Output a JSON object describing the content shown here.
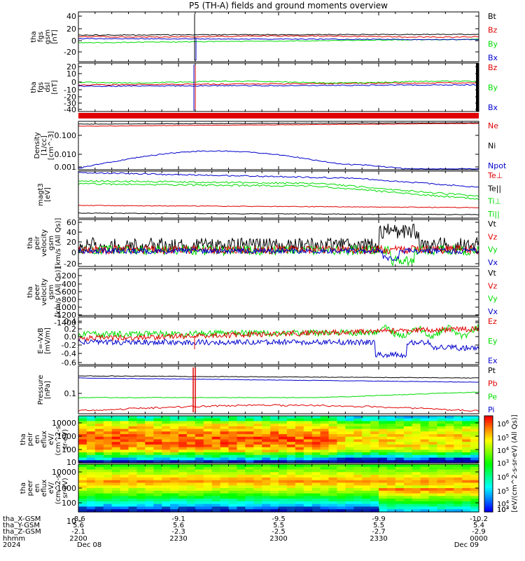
{
  "title": "P5 (TH-A) fields and ground moments overview",
  "colors": {
    "black": "#000000",
    "red": "#e00000",
    "green": "#00dd00",
    "blue": "#0000cc"
  },
  "panels": [
    {
      "id": "fgs-gsm",
      "ylabel": [
        "tha",
        "fgs",
        "gsm",
        "[nT]"
      ],
      "ticks": [
        "40",
        "20",
        "0",
        "-20"
      ],
      "legend": [
        {
          "text": "Bt",
          "color": "black"
        },
        {
          "text": "Bz",
          "color": "red"
        },
        {
          "text": "By",
          "color": "green"
        },
        {
          "text": "Bx",
          "color": "blue"
        }
      ]
    },
    {
      "id": "fgs-dsl",
      "ylabel": [
        "tha",
        "fgs",
        "dsl",
        "[nT]"
      ],
      "ticks": [
        "20",
        "10",
        "0",
        "-10",
        "-20",
        "-30",
        "-40"
      ],
      "legend": [
        {
          "text": "Bz",
          "color": "red"
        },
        {
          "text": "By",
          "color": "green"
        },
        {
          "text": "Bx",
          "color": "blue"
        }
      ]
    },
    {
      "id": "density",
      "ylabel": [
        "Density",
        "[1/cc]",
        "[cm^-3]"
      ],
      "ticks": [
        "0.100",
        "0.010",
        "0.001"
      ],
      "legend": [
        {
          "text": "Ne",
          "color": "red"
        },
        {
          "text": "Ni",
          "color": "black"
        },
        {
          "text": "Npot",
          "color": "blue"
        }
      ]
    },
    {
      "id": "temperature",
      "ylabel": [
        "magt3",
        "[eV]"
      ],
      "ticks": [],
      "legend": [
        {
          "text": "Te⊥",
          "color": "red"
        },
        {
          "text": "Te||",
          "color": "black"
        },
        {
          "text": "Ti⊥",
          "color": "green"
        },
        {
          "text": "Ti||",
          "color": "green"
        }
      ]
    },
    {
      "id": "peir-velocity",
      "ylabel": [
        "tha",
        "peir",
        "velocity",
        "gsm",
        "[km/s (All Qs)]"
      ],
      "ticks": [
        "60",
        "40",
        "20",
        "0",
        "-20"
      ],
      "legend": [
        {
          "text": "Vt",
          "color": "black"
        },
        {
          "text": "Vz",
          "color": "red"
        },
        {
          "text": "Vy",
          "color": "green"
        },
        {
          "text": "Vx",
          "color": "blue"
        }
      ]
    },
    {
      "id": "peer-velocity",
      "ylabel": [
        "tha",
        "peer",
        "velocity",
        "gsm",
        "[km/s (All Qs)]"
      ],
      "ticks": [
        "-200",
        "-400",
        "-600",
        "-800",
        "-1000",
        "-1200",
        "-1400"
      ],
      "legend": [
        {
          "text": "Vt",
          "color": "black"
        },
        {
          "text": "Vz",
          "color": "red"
        },
        {
          "text": "Vy",
          "color": "green"
        },
        {
          "text": "Vx",
          "color": "blue"
        }
      ]
    },
    {
      "id": "efield",
      "ylabel": [
        "E=-VxB",
        "[mV/m]"
      ],
      "ticks": [
        "0.4",
        "0.2",
        "0.0",
        "-0.2",
        "-0.4",
        "-0.6"
      ],
      "legend": [
        {
          "text": "Ez",
          "color": "red"
        },
        {
          "text": "Ey",
          "color": "green"
        },
        {
          "text": "Ex",
          "color": "blue"
        }
      ]
    },
    {
      "id": "pressure",
      "ylabel": [
        "Pressure",
        "[nPa]"
      ],
      "ticks": [
        "0.1"
      ],
      "legend": [
        {
          "text": "Pt",
          "color": "black"
        },
        {
          "text": "Pb",
          "color": "red"
        },
        {
          "text": "Pe",
          "color": "green"
        },
        {
          "text": "Pi",
          "color": "blue"
        }
      ]
    },
    {
      "id": "peir-spec",
      "ylabel": [
        "tha",
        "peir",
        "en",
        "eflux",
        "eV/",
        "(cm^2-s-",
        "sr-eV)"
      ],
      "ticks": [
        "10000",
        "1000",
        "100",
        "10"
      ],
      "legend": []
    },
    {
      "id": "peer-spec",
      "ylabel": [
        "tha",
        "peer",
        "en",
        "eflux",
        "eV/",
        "(cm^2-s-",
        "sr-eV)"
      ],
      "ticks": [
        "10000",
        "1000",
        "100",
        "10"
      ],
      "legend": []
    }
  ],
  "colorbar": {
    "ticks": [
      "10^6",
      "10^5",
      "10^4",
      "10^3",
      "10^6",
      "10^5",
      "10^4",
      "10^3",
      "10^2"
    ],
    "label": "[eV/(cm^2-s-sr-eV) (All Qs)]"
  },
  "xaxis": {
    "row_labels": [
      "tha_X-GSM",
      "tha_Y-GSM",
      "tha_Z-GSM",
      "hhmm",
      "2024"
    ],
    "columns": [
      [
        "-8.6",
        "5.6",
        "-2.1",
        "2200",
        "Dec 08"
      ],
      [
        "-9.1",
        "5.6",
        "-2.3",
        "2230",
        ""
      ],
      [
        "-9.5",
        "5.5",
        "-2.5",
        "2300",
        ""
      ],
      [
        "-9.9",
        "5.5",
        "-2.7",
        "2330",
        ""
      ],
      [
        "-10.2",
        "5.4",
        "-2.9",
        "0000",
        "Dec 09"
      ]
    ]
  },
  "chart_data": {
    "type": "line",
    "time_range": [
      "2024-12-08 22:00",
      "2024-12-09 00:00"
    ],
    "series": [
      {
        "panel": "fgs-gsm",
        "name": "Bt",
        "color": "black",
        "values": [
          8,
          8,
          8,
          7,
          7,
          7,
          7,
          6,
          6,
          7
        ]
      },
      {
        "panel": "fgs-gsm",
        "name": "Bz",
        "color": "red",
        "values": [
          6,
          6,
          6,
          5,
          5,
          5,
          6,
          5,
          7,
          5
        ]
      },
      {
        "panel": "fgs-gsm",
        "name": "By",
        "color": "green",
        "values": [
          -6,
          -5,
          -4,
          -3,
          -2,
          -1,
          0,
          1,
          -2,
          2
        ]
      },
      {
        "panel": "fgs-gsm",
        "name": "Bx",
        "color": "blue",
        "values": [
          2,
          2,
          2,
          2,
          1,
          1,
          1,
          0,
          1,
          0
        ]
      },
      {
        "panel": "density",
        "name": "Ne",
        "color": "red",
        "values": [
          0.28,
          0.27,
          0.26,
          0.26,
          0.27,
          0.27,
          0.28,
          0.3,
          0.32,
          0.33
        ]
      },
      {
        "panel": "density",
        "name": "Npot",
        "color": "blue",
        "values": [
          0.0011,
          0.003,
          0.005,
          0.007,
          0.0075,
          0.0065,
          0.004,
          0.002,
          0.001,
          null
        ]
      },
      {
        "panel": "peir-velocity",
        "name": "Vt",
        "color": "black",
        "values": [
          20,
          22,
          20,
          18,
          20,
          19,
          18,
          22,
          45,
          25
        ]
      },
      {
        "panel": "peir-velocity",
        "name": "Vx",
        "color": "blue",
        "values": [
          5,
          3,
          2,
          3,
          4,
          2,
          3,
          2,
          -5,
          5
        ]
      },
      {
        "panel": "efield",
        "name": "Ez",
        "color": "red",
        "values": [
          0.02,
          0.03,
          0.05,
          0.06,
          0.08,
          0.1,
          0.12,
          0.13,
          0.15,
          0.12
        ]
      },
      {
        "panel": "efield",
        "name": "Ex",
        "color": "blue",
        "values": [
          -0.08,
          -0.06,
          -0.05,
          -0.04,
          -0.03,
          -0.04,
          -0.02,
          -0.1,
          -0.35,
          -0.15
        ]
      },
      {
        "panel": "pressure",
        "name": "Pt",
        "color": "black",
        "values": [
          0.3,
          0.29,
          0.28,
          0.27,
          0.27,
          0.26,
          0.27,
          0.27,
          0.26,
          0.26
        ]
      },
      {
        "panel": "pressure",
        "name": "Pe",
        "color": "green",
        "values": [
          0.1,
          0.1,
          0.1,
          0.1,
          0.095,
          0.09,
          0.11,
          0.12,
          0.11,
          0.1
        ]
      }
    ]
  }
}
